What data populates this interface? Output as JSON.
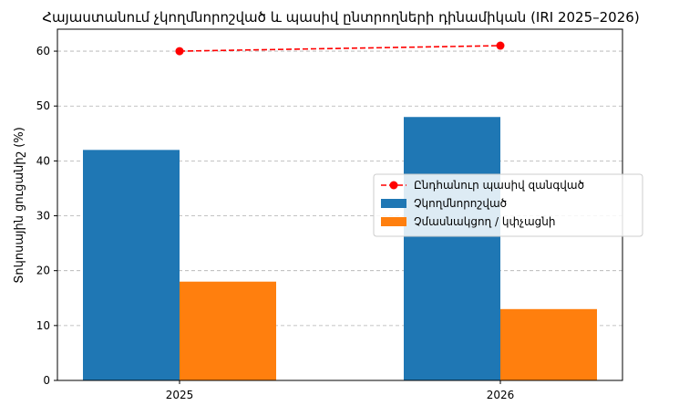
{
  "chart_data": {
    "type": "bar",
    "title": "Հայաստանում չկողմնորոշված և պասիվ ընտրողների դինամիկան (IRI 2025–2026)",
    "xlabel": "",
    "ylabel": "Տոկոսային ցուցանիշ (%)",
    "categories": [
      "2025",
      "2026"
    ],
    "ylim": [
      0,
      64
    ],
    "yticks": [
      0,
      10,
      20,
      30,
      40,
      50,
      60
    ],
    "grid": "y-dashed",
    "legend_position": "center-right",
    "series": [
      {
        "name": "Ընդհանուր պասիվ զանգված",
        "kind": "line",
        "values": [
          60,
          61
        ],
        "color": "#ff0000",
        "style": "dashed-with-circle-markers"
      },
      {
        "name": "Չկողմնորոշված",
        "kind": "bar",
        "values": [
          42,
          48
        ],
        "color": "#1f77b4"
      },
      {
        "name": "Չմասնակցող / կփչացնի",
        "kind": "bar",
        "values": [
          18,
          13
        ],
        "color": "#ff7f0e"
      }
    ]
  }
}
